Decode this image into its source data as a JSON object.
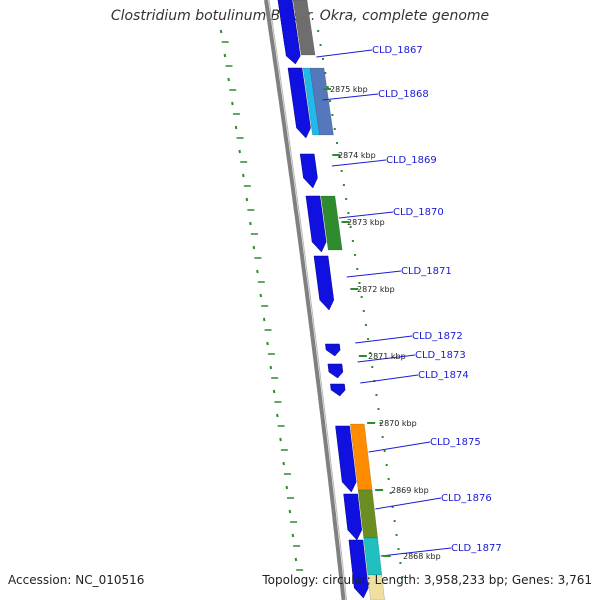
{
  "title": "Clostridium botulinum B1 str. Okra, complete genome",
  "footer": {
    "accession": "Accession: NC_010516",
    "summary": "Topology: circular; Length: 3,958,233 bp; Genes: 3,761"
  },
  "genes": [
    {
      "id": "CLD_1867",
      "color": "#1010e0"
    },
    {
      "id": "CLD_1868",
      "color": "#1010e0"
    },
    {
      "id": "CLD_1869",
      "color": "#1010e0"
    },
    {
      "id": "CLD_1870",
      "color": "#1010e0"
    },
    {
      "id": "CLD_1871",
      "color": "#1010e0"
    },
    {
      "id": "CLD_1872",
      "color": "#1010e0"
    },
    {
      "id": "CLD_1873",
      "color": "#1010e0"
    },
    {
      "id": "CLD_1874",
      "color": "#1010e0"
    },
    {
      "id": "CLD_1875",
      "color": "#1010e0"
    },
    {
      "id": "CLD_1876",
      "color": "#1010e0"
    },
    {
      "id": "CLD_1877",
      "color": "#1010e0"
    }
  ],
  "ticks": [
    "2875 kbp",
    "2874 kbp",
    "2873 kbp",
    "2872 kbp",
    "2871 kbp",
    "2870 kbp",
    "2869 kbp",
    "2868 kbp"
  ],
  "colors": {
    "cds": "#1010e0",
    "backbone": "#808080",
    "tick": "#2e8b2e",
    "label": "#1a1ad6",
    "cog_gray": "#6e6e6e",
    "cog_cyan": "#22b8e8",
    "cog_steel": "#5577bb",
    "cog_green": "#2e8b2e",
    "cog_orange": "#ff8c00",
    "cog_olive": "#6b8e23",
    "cog_teal": "#20c0c0",
    "cog_khaki": "#f0e0a0"
  }
}
